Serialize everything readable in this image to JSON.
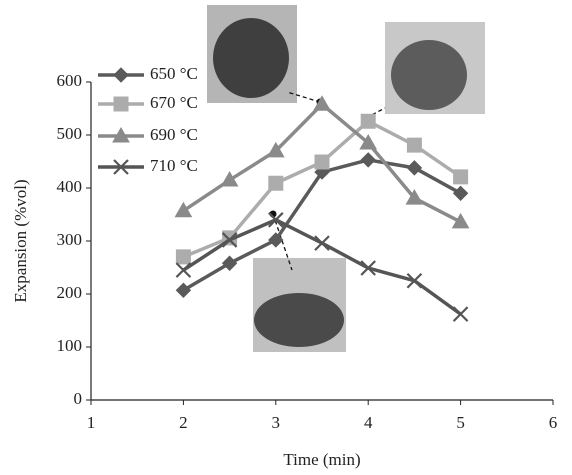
{
  "chart_data": {
    "type": "line",
    "x_label": "Time (min)",
    "y_label": "Expansion (%vol)",
    "x": [
      2,
      2.5,
      3,
      3.5,
      4,
      4.5,
      5
    ],
    "series": [
      {
        "name": "650 °C",
        "color": "#5a5a5a",
        "marker": "diamond",
        "values": [
          207,
          258,
          302,
          430,
          453,
          438,
          390
        ]
      },
      {
        "name": "670 °C",
        "color": "#acacac",
        "marker": "square",
        "values": [
          270,
          306,
          409,
          449,
          526,
          481,
          421
        ]
      },
      {
        "name": "690 °C",
        "color": "#8a8a8a",
        "marker": "triangle",
        "values": [
          357,
          415,
          470,
          558,
          485,
          381,
          336
        ]
      },
      {
        "name": "710 °C",
        "color": "#555555",
        "marker": "x",
        "values": [
          245,
          302,
          340,
          296,
          249,
          225,
          162
        ]
      }
    ],
    "xlim": [
      1,
      6
    ],
    "xticks": [
      1,
      2,
      3,
      4,
      5,
      6
    ],
    "ylim": [
      0,
      600
    ],
    "yticks": [
      0,
      100,
      200,
      300,
      400,
      500,
      600
    ],
    "legend": "top-left"
  }
}
